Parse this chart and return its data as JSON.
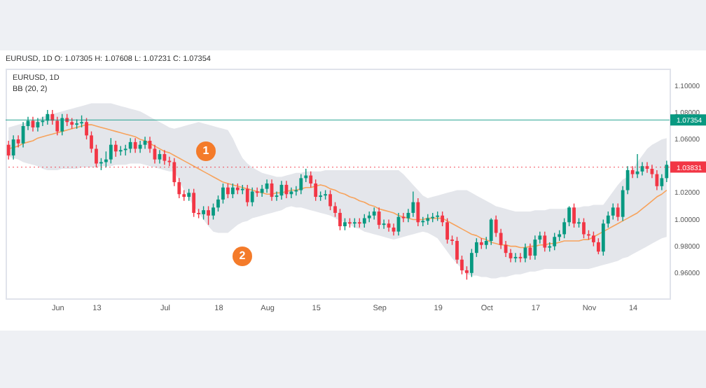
{
  "chart_data": {
    "type": "candlestick",
    "title": "EURUSD, 1D O: 1.07305 H: 1.07608 L: 1.07231 C: 1.07354",
    "subtitle": "EURUSD, 1D",
    "annotations": [
      "BB (20, 2)",
      "1",
      "2"
    ],
    "categories": [
      null,
      null,
      null,
      null,
      null,
      null,
      null,
      null,
      null,
      null,
      "Jun",
      null,
      null,
      null,
      null,
      null,
      null,
      null,
      "13",
      null,
      null,
      null,
      null,
      null,
      null,
      null,
      null,
      null,
      null,
      null,
      null,
      null,
      "Jul",
      null,
      null,
      null,
      null,
      null,
      null,
      null,
      null,
      null,
      null,
      "18",
      null,
      null,
      null,
      null,
      null,
      null,
      null,
      null,
      null,
      "Aug",
      null,
      null,
      null,
      null,
      null,
      null,
      null,
      null,
      null,
      "15",
      null,
      null,
      null,
      null,
      null,
      null,
      null,
      null,
      null,
      null,
      null,
      null,
      "Sep",
      null,
      null,
      null,
      null,
      null,
      null,
      null,
      null,
      null,
      null,
      null,
      "19",
      null,
      null,
      null,
      null,
      null,
      null,
      null,
      null,
      null,
      "Oct",
      null,
      null,
      null,
      null,
      null,
      null,
      null,
      null,
      null,
      "17",
      null,
      null,
      null,
      null,
      null,
      null,
      null,
      null,
      null,
      null,
      "Nov",
      null,
      null,
      null,
      null,
      null,
      null,
      null,
      null,
      "14",
      null,
      null,
      null,
      null,
      null,
      null,
      null
    ],
    "ohlc": [
      [
        1.055,
        1.058,
        1.044,
        1.047
      ],
      [
        1.047,
        1.062,
        1.044,
        1.059
      ],
      [
        1.059,
        1.062,
        1.053,
        1.056
      ],
      [
        1.056,
        1.072,
        1.053,
        1.069
      ],
      [
        1.069,
        1.076,
        1.066,
        1.073
      ],
      [
        1.073,
        1.076,
        1.065,
        1.068
      ],
      [
        1.068,
        1.075,
        1.065,
        1.072
      ],
      [
        1.072,
        1.076,
        1.069,
        1.073
      ],
      [
        1.073,
        1.081,
        1.07,
        1.078
      ],
      [
        1.078,
        1.081,
        1.07,
        1.073
      ],
      [
        1.073,
        1.076,
        1.062,
        1.065
      ],
      [
        1.065,
        1.078,
        1.062,
        1.075
      ],
      [
        1.075,
        1.078,
        1.069,
        1.072
      ],
      [
        1.072,
        1.075,
        1.067,
        1.07
      ],
      [
        1.07,
        1.074,
        1.067,
        1.071
      ],
      [
        1.071,
        1.077,
        1.068,
        1.072
      ],
      [
        1.072,
        1.075,
        1.059,
        1.062
      ],
      [
        1.062,
        1.065,
        1.049,
        1.052
      ],
      [
        1.052,
        1.055,
        1.038,
        1.041
      ],
      [
        1.041,
        1.045,
        1.036,
        1.042
      ],
      [
        1.042,
        1.05,
        1.038,
        1.044
      ],
      [
        1.044,
        1.06,
        1.041,
        1.055
      ],
      [
        1.055,
        1.058,
        1.046,
        1.05
      ],
      [
        1.05,
        1.054,
        1.047,
        1.051
      ],
      [
        1.051,
        1.055,
        1.047,
        1.052
      ],
      [
        1.052,
        1.06,
        1.049,
        1.057
      ],
      [
        1.057,
        1.06,
        1.049,
        1.052
      ],
      [
        1.052,
        1.058,
        1.049,
        1.055
      ],
      [
        1.055,
        1.061,
        1.052,
        1.058
      ],
      [
        1.058,
        1.061,
        1.049,
        1.052
      ],
      [
        1.052,
        1.055,
        1.041,
        1.044
      ],
      [
        1.044,
        1.051,
        1.041,
        1.048
      ],
      [
        1.048,
        1.051,
        1.04,
        1.043
      ],
      [
        1.043,
        1.046,
        1.039,
        1.042
      ],
      [
        1.042,
        1.045,
        1.024,
        1.027
      ],
      [
        1.027,
        1.03,
        1.015,
        1.018
      ],
      [
        1.018,
        1.021,
        1.013,
        1.016
      ],
      [
        1.016,
        1.022,
        1.013,
        1.019
      ],
      [
        1.019,
        1.022,
        1.001,
        1.004
      ],
      [
        1.004,
        1.007,
        1.0,
        1.003
      ],
      [
        1.003,
        1.009,
        0.999,
        1.006
      ],
      [
        1.006,
        1.009,
        0.995,
        1.002
      ],
      [
        1.002,
        1.011,
        0.999,
        1.008
      ],
      [
        1.008,
        1.017,
        1.005,
        1.014
      ],
      [
        1.014,
        1.026,
        1.011,
        1.023
      ],
      [
        1.023,
        1.026,
        1.015,
        1.018
      ],
      [
        1.018,
        1.026,
        1.015,
        1.023
      ],
      [
        1.023,
        1.026,
        1.018,
        1.021
      ],
      [
        1.021,
        1.025,
        1.018,
        1.022
      ],
      [
        1.022,
        1.025,
        1.009,
        1.012
      ],
      [
        1.012,
        1.023,
        1.009,
        1.02
      ],
      [
        1.02,
        1.023,
        1.016,
        1.019
      ],
      [
        1.019,
        1.025,
        1.016,
        1.022
      ],
      [
        1.022,
        1.029,
        1.019,
        1.026
      ],
      [
        1.026,
        1.029,
        1.013,
        1.016
      ],
      [
        1.016,
        1.02,
        1.013,
        1.017
      ],
      [
        1.017,
        1.028,
        1.014,
        1.025
      ],
      [
        1.025,
        1.028,
        1.015,
        1.018
      ],
      [
        1.018,
        1.023,
        1.015,
        1.02
      ],
      [
        1.02,
        1.024,
        1.017,
        1.021
      ],
      [
        1.021,
        1.033,
        1.018,
        1.03
      ],
      [
        1.03,
        1.037,
        1.027,
        1.032
      ],
      [
        1.032,
        1.035,
        1.023,
        1.026
      ],
      [
        1.026,
        1.029,
        1.013,
        1.016
      ],
      [
        1.016,
        1.02,
        1.013,
        1.017
      ],
      [
        1.017,
        1.021,
        1.014,
        1.018
      ],
      [
        1.018,
        1.021,
        1.006,
        1.009
      ],
      [
        1.009,
        1.012,
        1.001,
        1.004
      ],
      [
        1.004,
        1.007,
        0.991,
        0.994
      ],
      [
        0.994,
        1.0,
        0.991,
        0.997
      ],
      [
        0.997,
        1.0,
        0.993,
        0.996
      ],
      [
        0.996,
        1.0,
        0.993,
        0.997
      ],
      [
        0.997,
        1.0,
        0.993,
        0.996
      ],
      [
        0.996,
        1.003,
        0.993,
        1.0
      ],
      [
        1.0,
        1.005,
        0.997,
        1.002
      ],
      [
        1.002,
        1.008,
        0.999,
        1.005
      ],
      [
        1.005,
        1.008,
        0.992,
        0.995
      ],
      [
        0.995,
        0.999,
        0.992,
        0.996
      ],
      [
        0.996,
        0.999,
        0.99,
        0.993
      ],
      [
        0.993,
        0.996,
        0.987,
        0.99
      ],
      [
        0.99,
        1.004,
        0.987,
        1.001
      ],
      [
        1.001,
        1.004,
        0.997,
        1.0
      ],
      [
        1.0,
        1.007,
        0.997,
        1.004
      ],
      [
        1.004,
        1.02,
        1.001,
        1.012
      ],
      [
        1.012,
        1.015,
        0.994,
        0.997
      ],
      [
        0.997,
        1.001,
        0.994,
        0.998
      ],
      [
        0.998,
        1.003,
        0.995,
        1.0
      ],
      [
        1.0,
        1.004,
        0.997,
        1.001
      ],
      [
        1.001,
        1.005,
        0.998,
        1.002
      ],
      [
        1.002,
        1.005,
        0.994,
        0.997
      ],
      [
        0.997,
        1.0,
        0.981,
        0.984
      ],
      [
        0.984,
        0.987,
        0.98,
        0.983
      ],
      [
        0.983,
        0.986,
        0.966,
        0.969
      ],
      [
        0.969,
        0.972,
        0.958,
        0.961
      ],
      [
        0.961,
        0.964,
        0.954,
        0.959
      ],
      [
        0.959,
        0.977,
        0.956,
        0.974
      ],
      [
        0.974,
        0.985,
        0.971,
        0.982
      ],
      [
        0.982,
        0.985,
        0.977,
        0.98
      ],
      [
        0.98,
        0.986,
        0.977,
        0.983
      ],
      [
        0.983,
        1.0,
        0.98,
        0.999
      ],
      [
        0.999,
        1.002,
        0.986,
        0.989
      ],
      [
        0.989,
        0.992,
        0.977,
        0.98
      ],
      [
        0.98,
        0.983,
        0.971,
        0.974
      ],
      [
        0.974,
        0.977,
        0.967,
        0.97
      ],
      [
        0.97,
        0.974,
        0.967,
        0.971
      ],
      [
        0.971,
        0.974,
        0.967,
        0.97
      ],
      [
        0.97,
        0.981,
        0.967,
        0.978
      ],
      [
        0.978,
        0.981,
        0.969,
        0.972
      ],
      [
        0.972,
        0.987,
        0.969,
        0.984
      ],
      [
        0.984,
        0.99,
        0.981,
        0.987
      ],
      [
        0.987,
        0.99,
        0.975,
        0.978
      ],
      [
        0.978,
        0.982,
        0.975,
        0.979
      ],
      [
        0.979,
        0.989,
        0.976,
        0.986
      ],
      [
        0.986,
        0.991,
        0.983,
        0.988
      ],
      [
        0.988,
        1.0,
        0.985,
        0.997
      ],
      [
        0.997,
        1.009,
        0.994,
        1.008
      ],
      [
        1.008,
        1.011,
        0.993,
        0.996
      ],
      [
        0.996,
        1.0,
        0.993,
        0.997
      ],
      [
        0.997,
        1.0,
        0.985,
        0.988
      ],
      [
        0.988,
        0.991,
        0.984,
        0.987
      ],
      [
        0.987,
        0.99,
        0.979,
        0.982
      ],
      [
        0.982,
        0.985,
        0.973,
        0.975
      ],
      [
        0.975,
        0.999,
        0.972,
        0.996
      ],
      [
        0.996,
        1.005,
        0.993,
        1.002
      ],
      [
        1.002,
        1.011,
        0.999,
        1.008
      ],
      [
        1.008,
        1.011,
        0.998,
        1.001
      ],
      [
        1.001,
        1.024,
        0.998,
        1.021
      ],
      [
        1.021,
        1.039,
        1.018,
        1.036
      ],
      [
        1.036,
        1.039,
        1.03,
        1.033
      ],
      [
        1.033,
        1.048,
        1.03,
        1.035
      ],
      [
        1.035,
        1.042,
        1.032,
        1.039
      ],
      [
        1.039,
        1.042,
        1.034,
        1.037
      ],
      [
        1.037,
        1.04,
        1.03,
        1.033
      ],
      [
        1.033,
        1.036,
        1.021,
        1.024
      ],
      [
        1.024,
        1.033,
        1.021,
        1.03
      ],
      [
        1.03,
        1.043,
        1.027,
        1.04
      ]
    ],
    "series": [
      {
        "type": "line",
        "color": "#f7a35c",
        "values": [
          1.052,
          1.053,
          1.054,
          1.056,
          1.057,
          1.058,
          1.06,
          1.061,
          1.062,
          1.063,
          1.064,
          1.065,
          1.066,
          1.067,
          1.068,
          1.069,
          1.07,
          1.07,
          1.069,
          1.068,
          1.067,
          1.066,
          1.065,
          1.064,
          1.063,
          1.062,
          1.061,
          1.059,
          1.058,
          1.056,
          1.054,
          1.052,
          1.05,
          1.049,
          1.047,
          1.045,
          1.043,
          1.041,
          1.039,
          1.037,
          1.035,
          1.033,
          1.031,
          1.029,
          1.027,
          1.026,
          1.025,
          1.024,
          1.023,
          1.022,
          1.021,
          1.02,
          1.019,
          1.018,
          1.018,
          1.019,
          1.019,
          1.02,
          1.021,
          1.021,
          1.022,
          1.023,
          1.023,
          1.024,
          1.025,
          1.024,
          1.022,
          1.021,
          1.019,
          1.018,
          1.016,
          1.015,
          1.013,
          1.012,
          1.01,
          1.009,
          1.007,
          1.006,
          1.005,
          1.004,
          1.002,
          1.001,
          1.0,
          0.999,
          0.999,
          0.999,
          1.0,
          1.0,
          1.0,
          1.0,
          0.998,
          0.996,
          0.994,
          0.992,
          0.99,
          0.988,
          0.987,
          0.985,
          0.984,
          0.982,
          0.981,
          0.98,
          0.98,
          0.979,
          0.979,
          0.978,
          0.978,
          0.979,
          0.979,
          0.98,
          0.98,
          0.981,
          0.981,
          0.982,
          0.983,
          0.983,
          0.983,
          0.983,
          0.984,
          0.984,
          0.986,
          0.988,
          0.99,
          0.992,
          0.994,
          0.996,
          0.998,
          1.0,
          1.002,
          1.004,
          1.007,
          1.01,
          1.013,
          1.016,
          1.018,
          1.021
        ],
        "upper": [
          1.068,
          1.069,
          1.07,
          1.071,
          1.072,
          1.073,
          1.074,
          1.076,
          1.077,
          1.078,
          1.079,
          1.08,
          1.081,
          1.082,
          1.083,
          1.084,
          1.085,
          1.086,
          1.086,
          1.086,
          1.086,
          1.086,
          1.085,
          1.084,
          1.083,
          1.082,
          1.081,
          1.08,
          1.078,
          1.076,
          1.074,
          1.072,
          1.07,
          1.068,
          1.067,
          1.068,
          1.069,
          1.07,
          1.071,
          1.072,
          1.071,
          1.07,
          1.069,
          1.068,
          1.067,
          1.066,
          1.06,
          1.052,
          1.045,
          1.041,
          1.038,
          1.036,
          1.034,
          1.033,
          1.032,
          1.031,
          1.031,
          1.032,
          1.033,
          1.034,
          1.034,
          1.035,
          1.035,
          1.035,
          1.035,
          1.036,
          1.036,
          1.036,
          1.036,
          1.036,
          1.036,
          1.036,
          1.036,
          1.036,
          1.036,
          1.036,
          1.036,
          1.036,
          1.036,
          1.036,
          1.036,
          1.033,
          1.029,
          1.025,
          1.021,
          1.017,
          1.015,
          1.016,
          1.017,
          1.018,
          1.019,
          1.02,
          1.021,
          1.021,
          1.021,
          1.019,
          1.017,
          1.015,
          1.013,
          1.011,
          1.009,
          1.008,
          1.007,
          1.006,
          1.005,
          1.005,
          1.005,
          1.005,
          1.006,
          1.006,
          1.006,
          1.007,
          1.007,
          1.007,
          1.007,
          1.008,
          1.008,
          1.008,
          1.009,
          1.009,
          1.01,
          1.01,
          1.01,
          1.015,
          1.02,
          1.025,
          1.029,
          1.031,
          1.037,
          1.042,
          1.047,
          1.052,
          1.055,
          1.057,
          1.059,
          1.06
        ],
        "lower": [
          1.046,
          1.045,
          1.044,
          1.042,
          1.041,
          1.04,
          1.039,
          1.037,
          1.036,
          1.036,
          1.036,
          1.037,
          1.037,
          1.037,
          1.037,
          1.038,
          1.038,
          1.038,
          1.038,
          1.039,
          1.039,
          1.039,
          1.04,
          1.04,
          1.04,
          1.041,
          1.041,
          1.041,
          1.04,
          1.039,
          1.038,
          1.037,
          1.036,
          1.035,
          1.035,
          1.028,
          1.021,
          1.015,
          1.009,
          1.004,
          0.999,
          0.994,
          0.99,
          0.989,
          0.989,
          0.989,
          0.992,
          0.995,
          0.997,
          0.998,
          1.0,
          1.001,
          1.002,
          1.003,
          1.004,
          1.005,
          1.006,
          1.008,
          1.009,
          1.008,
          1.008,
          1.007,
          1.006,
          1.005,
          1.004,
          1.003,
          1.002,
          1.0,
          0.998,
          0.997,
          0.995,
          0.993,
          0.992,
          0.99,
          0.989,
          0.988,
          0.987,
          0.986,
          0.985,
          0.984,
          0.985,
          0.986,
          0.987,
          0.988,
          0.989,
          0.99,
          0.989,
          0.987,
          0.985,
          0.98,
          0.975,
          0.97,
          0.966,
          0.962,
          0.958,
          0.957,
          0.957,
          0.956,
          0.956,
          0.955,
          0.955,
          0.956,
          0.956,
          0.957,
          0.958,
          0.958,
          0.959,
          0.96,
          0.96,
          0.961,
          0.962,
          0.962,
          0.962,
          0.962,
          0.962,
          0.962,
          0.962,
          0.962,
          0.962,
          0.962,
          0.963,
          0.964,
          0.965,
          0.966,
          0.967,
          0.968,
          0.97,
          0.971,
          0.973,
          0.975,
          0.977,
          0.979,
          0.981,
          0.983,
          0.985,
          0.986
        ]
      }
    ],
    "ylim": [
      0.94,
      1.112
    ],
    "yticks": [
      {
        "value": 0.96,
        "label": "0.96000"
      },
      {
        "value": 0.98,
        "label": "0.98000"
      },
      {
        "value": 1.0,
        "label": "1.00000"
      },
      {
        "value": 1.02,
        "label": "1.02000"
      },
      {
        "value": 1.06,
        "label": "1.06000"
      },
      {
        "value": 1.08,
        "label": "1.08000"
      },
      {
        "value": 1.1,
        "label": "1.10000"
      }
    ],
    "ref_lines": [
      {
        "axis": "y",
        "value": 1.07354,
        "label": "1.07354",
        "color": "#089981",
        "line_style": "solid"
      },
      {
        "axis": "y",
        "value": 1.03831,
        "label": "1.03831",
        "color": "#f23645",
        "line_style": "dotted"
      }
    ]
  }
}
